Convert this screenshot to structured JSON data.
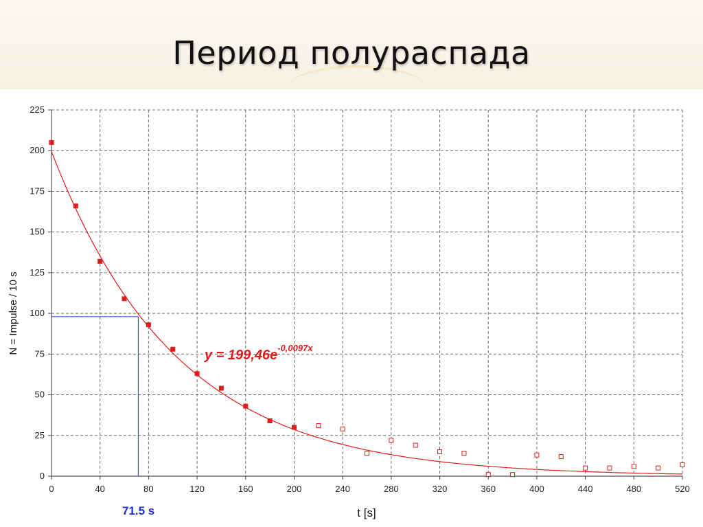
{
  "slide": {
    "title": "Период полураспада"
  },
  "chart_data": {
    "type": "scatter",
    "xlabel": "t [s]",
    "ylabel": "N = Impulse / 10 s",
    "xlim": [
      0,
      520
    ],
    "ylim": [
      0,
      225
    ],
    "xticks": [
      0,
      40,
      80,
      120,
      160,
      200,
      240,
      280,
      320,
      360,
      400,
      440,
      480,
      520
    ],
    "yticks": [
      0,
      25,
      50,
      75,
      100,
      125,
      150,
      175,
      200,
      225
    ],
    "grid": true,
    "series": [
      {
        "marker": "filled-square",
        "color": "#e01b1b",
        "x": [
          0,
          20,
          40,
          60,
          80,
          100,
          120,
          140,
          160,
          180,
          200
        ],
        "y": [
          205,
          166,
          132,
          109,
          93,
          78,
          63,
          54,
          43,
          34,
          30
        ]
      },
      {
        "marker": "open-square",
        "color": "#e01b1b",
        "x": [
          220,
          240,
          260,
          280,
          300,
          320,
          340,
          360,
          380,
          400,
          420,
          440,
          460,
          480,
          500,
          520
        ],
        "y": [
          31,
          29,
          14,
          22,
          19,
          15,
          14,
          1,
          1,
          13,
          12,
          5,
          5,
          6,
          5,
          7
        ]
      }
    ],
    "fit": {
      "a": 199.46,
      "b": -0.0097,
      "color": "#e01b1b",
      "label_main": "y = 199,46e",
      "label_exp": "-0,0097x"
    },
    "half_life": {
      "x": 71.5,
      "y": 98,
      "label": "71.5 s",
      "color": "#1a2fd6"
    }
  }
}
